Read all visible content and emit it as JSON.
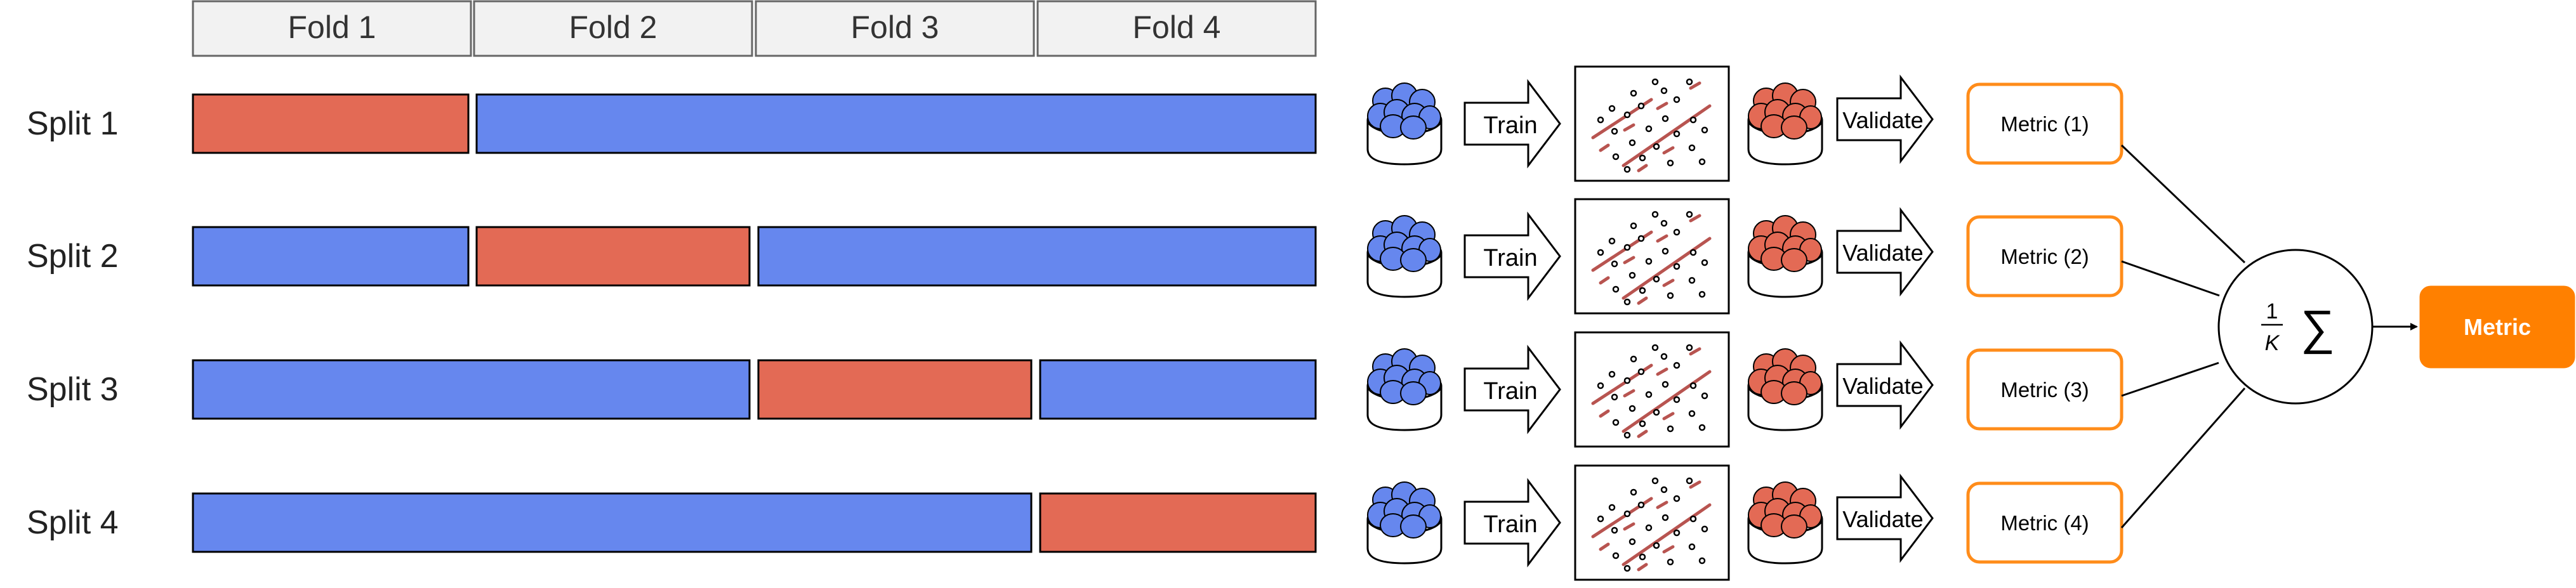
{
  "folds": [
    "Fold 1",
    "Fold 2",
    "Fold 3",
    "Fold 4"
  ],
  "splits": [
    {
      "label": "Split 1",
      "validation_fold": 1,
      "metric_label": "Metric (1)"
    },
    {
      "label": "Split 2",
      "validation_fold": 2,
      "metric_label": "Metric (2)"
    },
    {
      "label": "Split 3",
      "validation_fold": 3,
      "metric_label": "Metric (3)"
    },
    {
      "label": "Split 4",
      "validation_fold": 4,
      "metric_label": "Metric (4)"
    }
  ],
  "pipeline": {
    "train_label": "Train",
    "validate_label": "Validate"
  },
  "aggregator": {
    "frac_numerator": "1",
    "frac_denominator": "K",
    "sum_symbol": "∑"
  },
  "final_metric_label": "Metric",
  "colors": {
    "train_fold": "#6687EE",
    "validation_fold": "#E36A55",
    "metric_border": "#FF8C1A",
    "final_metric_fill": "#FF8000",
    "fold_header_fill": "#F2F2F2",
    "plot_line": "#B85450",
    "stroke": "#000000"
  },
  "icons": {
    "train_data": "blue-data-bowl-icon",
    "validation_data": "red-data-bowl-icon",
    "model_plot": "scatter-plot-icon",
    "arrow": "block-arrow-icon"
  }
}
